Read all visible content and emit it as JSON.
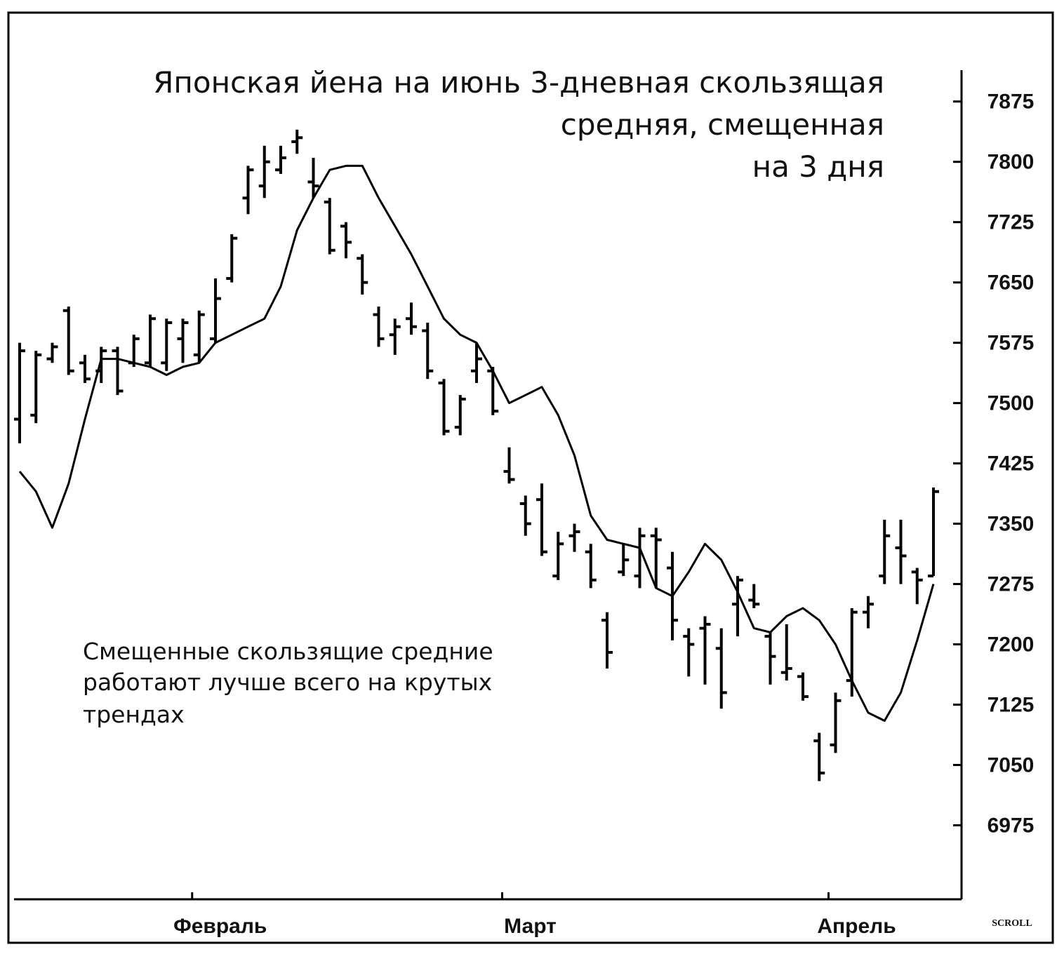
{
  "chart_data": {
    "type": "ohlc",
    "title_lines": [
      "Японская йена на июнь  3-дневная скользящая",
      "средняя, смещенная",
      "на 3 дня"
    ],
    "annotation_lines": [
      "Смещенные скользящие средние",
      "работают лучше всего на крутых",
      "трендах"
    ],
    "credit": "SCROLL",
    "categories": [
      null,
      null,
      null,
      null,
      null,
      null,
      null,
      null,
      null,
      null,
      null,
      "Февраль",
      null,
      null,
      null,
      null,
      null,
      null,
      null,
      null,
      null,
      null,
      null,
      null,
      null,
      null,
      null,
      null,
      null,
      null,
      "Март",
      null,
      null,
      null,
      null,
      null,
      null,
      null,
      null,
      null,
      null,
      null,
      null,
      null,
      null,
      null,
      null,
      null,
      null,
      null,
      "Апрель",
      null,
      null,
      null,
      null,
      null,
      null
    ],
    "series": [
      {
        "type": "ohlc",
        "color": "#000000",
        "open": [
          7480,
          7485,
          7555,
          7615,
          7550,
          7540,
          7565,
          7550,
          7550,
          7550,
          7580,
          7560,
          7580,
          7655,
          7755,
          7770,
          7790,
          7825,
          7775,
          7750,
          7720,
          7680,
          7610,
          7585,
          7605,
          7590,
          7525,
          7470,
          7540,
          7540,
          7415,
          7375,
          7380,
          7285,
          7335,
          7315,
          7230,
          7290,
          7285,
          7335,
          7295,
          7210,
          7220,
          7195,
          7250,
          7255,
          7210,
          7165,
          7160,
          7080,
          7075,
          7155,
          7240,
          7285,
          7320,
          7290,
          7285
        ],
        "high": [
          7575,
          7565,
          7575,
          7620,
          7560,
          7570,
          7570,
          7585,
          7610,
          7605,
          7605,
          7615,
          7655,
          7710,
          7795,
          7820,
          7820,
          7840,
          7805,
          7755,
          7725,
          7685,
          7620,
          7605,
          7625,
          7600,
          7530,
          7510,
          7575,
          7545,
          7445,
          7385,
          7400,
          7340,
          7350,
          7325,
          7240,
          7325,
          7345,
          7345,
          7315,
          7220,
          7235,
          7220,
          7285,
          7275,
          7215,
          7225,
          7165,
          7090,
          7140,
          7245,
          7260,
          7355,
          7355,
          7295,
          7395
        ],
        "low": [
          7450,
          7475,
          7550,
          7535,
          7525,
          7525,
          7510,
          7545,
          7545,
          7540,
          7550,
          7550,
          7575,
          7650,
          7735,
          7755,
          7785,
          7810,
          7755,
          7685,
          7680,
          7635,
          7570,
          7560,
          7585,
          7530,
          7460,
          7460,
          7525,
          7485,
          7400,
          7335,
          7310,
          7280,
          7315,
          7270,
          7170,
          7285,
          7270,
          7270,
          7205,
          7160,
          7150,
          7120,
          7210,
          7245,
          7150,
          7155,
          7130,
          7030,
          7065,
          7135,
          7220,
          7275,
          7275,
          7250,
          7285
        ],
        "close": [
          7565,
          7560,
          7570,
          7540,
          7530,
          7565,
          7515,
          7580,
          7605,
          7600,
          7600,
          7610,
          7630,
          7705,
          7790,
          7800,
          7805,
          7830,
          7770,
          7690,
          7700,
          7650,
          7580,
          7595,
          7595,
          7540,
          7465,
          7505,
          7555,
          7490,
          7405,
          7350,
          7315,
          7325,
          7340,
          7280,
          7190,
          7305,
          7335,
          7330,
          7230,
          7200,
          7225,
          7140,
          7280,
          7250,
          7185,
          7170,
          7135,
          7040,
          7130,
          7240,
          7250,
          7335,
          7310,
          7280,
          7390
        ]
      },
      {
        "type": "line",
        "color": "#000000",
        "values": [
          7415,
          7390,
          7345,
          7400,
          7480,
          7555,
          7555,
          7550,
          7545,
          7535,
          7545,
          7550,
          7575,
          7585,
          7595,
          7605,
          7645,
          7715,
          7755,
          7790,
          7795,
          7795,
          7755,
          7720,
          7685,
          7645,
          7605,
          7585,
          7575,
          7540,
          7500,
          7510,
          7520,
          7485,
          7435,
          7360,
          7330,
          7325,
          7320,
          7270,
          7260,
          7290,
          7325,
          7305,
          7265,
          7220,
          7215,
          7235,
          7245,
          7230,
          7200,
          7155,
          7115,
          7105,
          7140,
          7205,
          7275
        ]
      }
    ],
    "ylim": [
      6883,
      7914
    ],
    "yticks": [
      6975,
      7050,
      7125,
      7200,
      7275,
      7350,
      7425,
      7500,
      7575,
      7650,
      7725,
      7800,
      7875
    ],
    "grid": false
  }
}
